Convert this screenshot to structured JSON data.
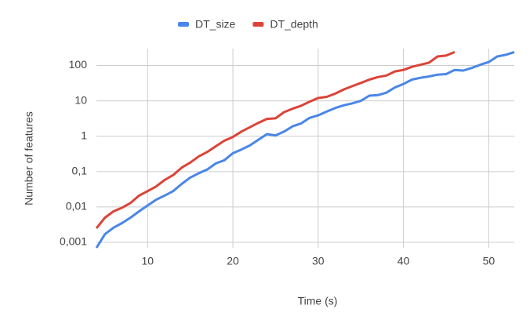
{
  "chart_data": {
    "type": "line",
    "xlabel": "Time (s)",
    "ylabel": "Number of features",
    "log_y": true,
    "grid": true,
    "legend": "top",
    "x": [
      4,
      5,
      6,
      7,
      8,
      9,
      10,
      11,
      12,
      13,
      14,
      15,
      16,
      17,
      18,
      19,
      20,
      21,
      22,
      23,
      24,
      25,
      26,
      27,
      28,
      29,
      30,
      31,
      32,
      33,
      34,
      35,
      36,
      37,
      38,
      39,
      40,
      41,
      42,
      43,
      44,
      45,
      46,
      47,
      48,
      49,
      50,
      51,
      52,
      53
    ],
    "series": [
      {
        "name": "DT_size",
        "color": "#4a86e8",
        "values": [
          0.0007,
          0.0017,
          0.0026,
          0.0035,
          0.005,
          0.0075,
          0.011,
          0.016,
          0.021,
          0.028,
          0.045,
          0.068,
          0.09,
          0.115,
          0.17,
          0.21,
          0.33,
          0.42,
          0.55,
          0.8,
          1.15,
          1.05,
          1.35,
          1.9,
          2.3,
          3.3,
          3.9,
          5,
          6.3,
          7.5,
          8.5,
          10,
          14,
          14.5,
          17,
          24,
          30,
          40,
          45,
          49,
          55,
          57,
          75,
          72,
          85,
          105,
          125,
          180,
          200,
          240
        ]
      },
      {
        "name": "DT_depth",
        "color": "#db4437",
        "values": [
          0.0025,
          0.005,
          0.0075,
          0.0095,
          0.013,
          0.021,
          0.028,
          0.038,
          0.058,
          0.08,
          0.13,
          0.18,
          0.27,
          0.36,
          0.52,
          0.75,
          0.95,
          1.35,
          1.8,
          2.4,
          3.1,
          3.2,
          4.8,
          6,
          7.3,
          9.5,
          12,
          13,
          16,
          21,
          26,
          32,
          40,
          47,
          52,
          68,
          75,
          92,
          105,
          120,
          180,
          190,
          240,
          null,
          null,
          null,
          null,
          null,
          null,
          null
        ]
      }
    ],
    "xlim": [
      4,
      53
    ],
    "xticks": [
      10,
      20,
      30,
      40,
      50
    ],
    "ylim": [
      0.0007,
      300
    ],
    "yticks": [
      {
        "value": 0.001,
        "label": "0,001"
      },
      {
        "value": 0.01,
        "label": "0,01"
      },
      {
        "value": 0.1,
        "label": "0,1"
      },
      1,
      10,
      100
    ]
  }
}
